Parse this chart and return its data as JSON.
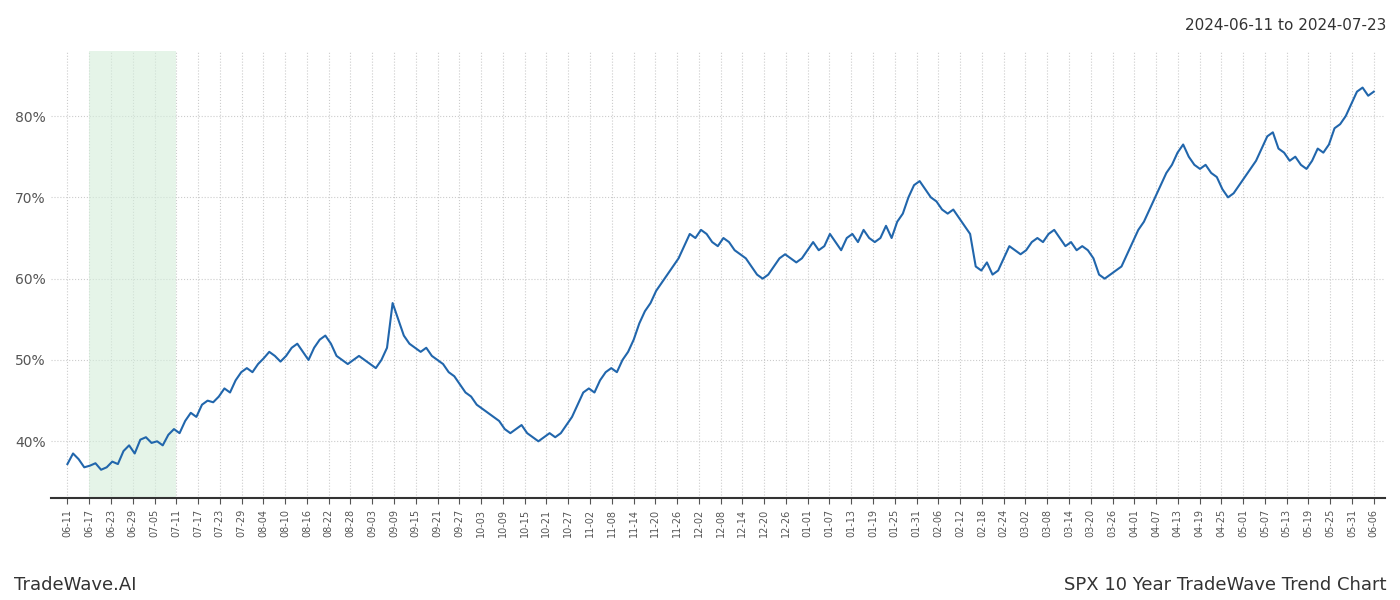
{
  "title_top_right": "2024-06-11 to 2024-07-23",
  "footer_left": "TradeWave.AI",
  "footer_right": "SPX 10 Year TradeWave Trend Chart",
  "line_color": "#2166ac",
  "line_width": 1.5,
  "shade_color": "#d4edda",
  "shade_alpha": 0.6,
  "background_color": "#ffffff",
  "grid_color": "#cccccc",
  "grid_linestyle": ":",
  "ylim": [
    33,
    88
  ],
  "yticks": [
    40,
    50,
    60,
    70,
    80
  ],
  "x_labels": [
    "06-11",
    "06-17",
    "06-23",
    "06-29",
    "07-05",
    "07-11",
    "07-17",
    "07-23",
    "07-29",
    "08-04",
    "08-10",
    "08-16",
    "08-22",
    "08-28",
    "09-03",
    "09-09",
    "09-15",
    "09-21",
    "09-27",
    "10-03",
    "10-09",
    "10-15",
    "10-21",
    "10-27",
    "11-02",
    "11-08",
    "11-14",
    "11-20",
    "11-26",
    "12-02",
    "12-08",
    "12-14",
    "12-20",
    "12-26",
    "01-01",
    "01-07",
    "01-13",
    "01-19",
    "01-25",
    "01-31",
    "02-06",
    "02-12",
    "02-18",
    "02-24",
    "03-02",
    "03-08",
    "03-14",
    "03-20",
    "03-26",
    "04-01",
    "04-07",
    "04-13",
    "04-19",
    "04-25",
    "05-01",
    "05-07",
    "05-13",
    "05-19",
    "05-25",
    "05-31",
    "06-06"
  ],
  "shade_start_label": "06-17",
  "shade_end_label": "07-11",
  "y_values": [
    37.2,
    38.5,
    37.8,
    36.8,
    37.0,
    37.3,
    36.5,
    36.8,
    37.5,
    37.2,
    38.8,
    39.5,
    38.5,
    40.2,
    40.5,
    39.8,
    40.0,
    39.5,
    40.8,
    41.5,
    41.0,
    42.5,
    43.5,
    43.0,
    44.5,
    45.0,
    44.8,
    45.5,
    46.5,
    46.0,
    47.5,
    48.5,
    49.0,
    48.5,
    49.5,
    50.2,
    51.0,
    50.5,
    49.8,
    50.5,
    51.5,
    52.0,
    51.0,
    50.0,
    51.5,
    52.5,
    53.0,
    52.0,
    50.5,
    50.0,
    49.5,
    50.0,
    50.5,
    50.0,
    49.5,
    49.0,
    50.0,
    51.5,
    57.0,
    55.0,
    53.0,
    52.0,
    51.5,
    51.0,
    51.5,
    50.5,
    50.0,
    49.5,
    48.5,
    48.0,
    47.0,
    46.0,
    45.5,
    44.5,
    44.0,
    43.5,
    43.0,
    42.5,
    41.5,
    41.0,
    41.5,
    42.0,
    41.0,
    40.5,
    40.0,
    40.5,
    41.0,
    40.5,
    41.0,
    42.0,
    43.0,
    44.5,
    46.0,
    46.5,
    46.0,
    47.5,
    48.5,
    49.0,
    48.5,
    50.0,
    51.0,
    52.5,
    54.5,
    56.0,
    57.0,
    58.5,
    59.5,
    60.5,
    61.5,
    62.5,
    64.0,
    65.5,
    65.0,
    66.0,
    65.5,
    64.5,
    64.0,
    65.0,
    64.5,
    63.5,
    63.0,
    62.5,
    61.5,
    60.5,
    60.0,
    60.5,
    61.5,
    62.5,
    63.0,
    62.5,
    62.0,
    62.5,
    63.5,
    64.5,
    63.5,
    64.0,
    65.5,
    64.5,
    63.5,
    65.0,
    65.5,
    64.5,
    66.0,
    65.0,
    64.5,
    65.0,
    66.5,
    65.0,
    67.0,
    68.0,
    70.0,
    71.5,
    72.0,
    71.0,
    70.0,
    69.5,
    68.5,
    68.0,
    68.5,
    67.5,
    66.5,
    65.5,
    61.5,
    61.0,
    62.0,
    60.5,
    61.0,
    62.5,
    64.0,
    63.5,
    63.0,
    63.5,
    64.5,
    65.0,
    64.5,
    65.5,
    66.0,
    65.0,
    64.0,
    64.5,
    63.5,
    64.0,
    63.5,
    62.5,
    60.5,
    60.0,
    60.5,
    61.0,
    61.5,
    63.0,
    64.5,
    66.0,
    67.0,
    68.5,
    70.0,
    71.5,
    73.0,
    74.0,
    75.5,
    76.5,
    75.0,
    74.0,
    73.5,
    74.0,
    73.0,
    72.5,
    71.0,
    70.0,
    70.5,
    71.5,
    72.5,
    73.5,
    74.5,
    76.0,
    77.5,
    78.0,
    76.0,
    75.5,
    74.5,
    75.0,
    74.0,
    73.5,
    74.5,
    76.0,
    75.5,
    76.5,
    78.5,
    79.0,
    80.0,
    81.5,
    83.0,
    83.5,
    82.5,
    83.0
  ]
}
